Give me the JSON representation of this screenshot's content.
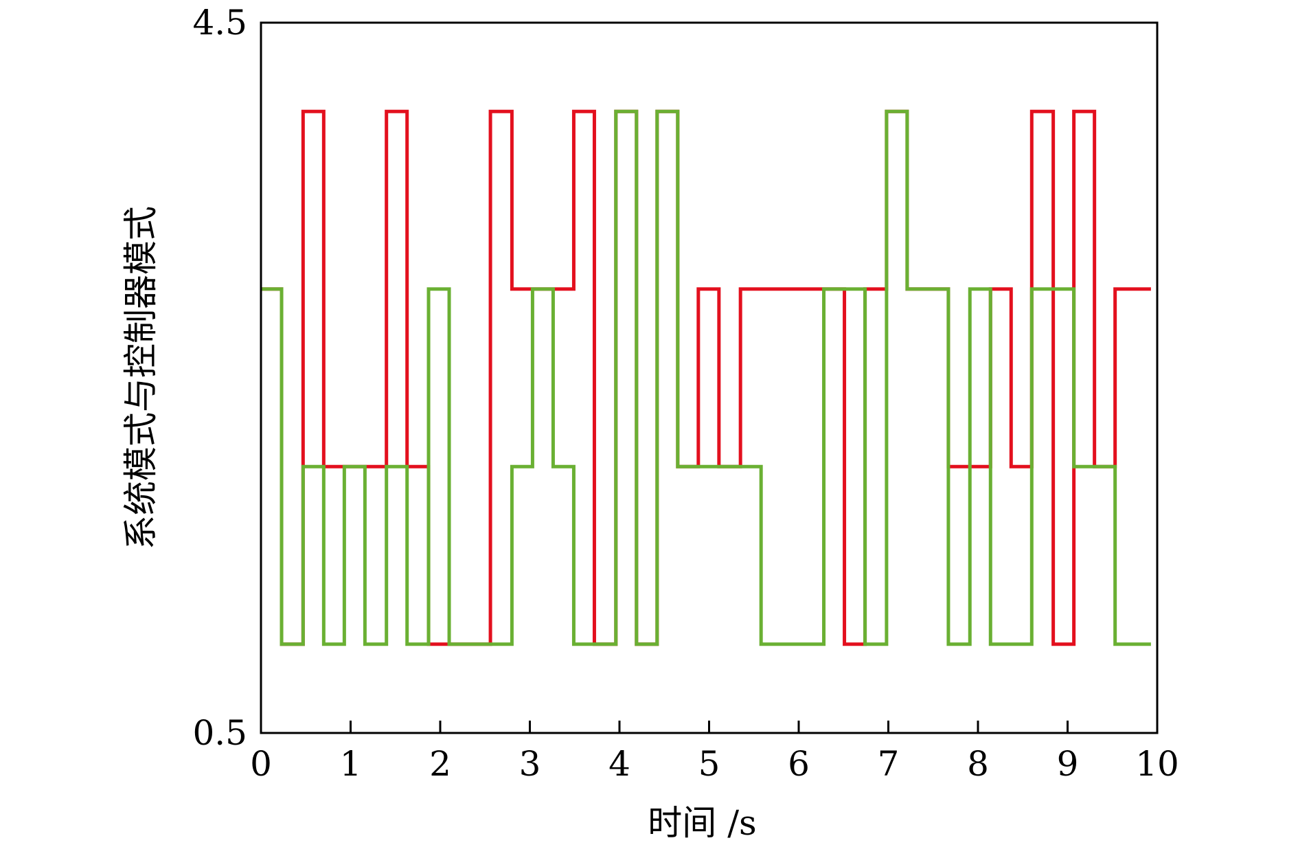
{
  "chart_data": {
    "type": "line",
    "step": "post",
    "xlabel": "时间 /s",
    "ylabel": "系统模式与控制器模式",
    "xlim": [
      0,
      10
    ],
    "ylim": [
      0.5,
      4.5
    ],
    "xticks": [
      "0",
      "1",
      "2",
      "3",
      "4",
      "5",
      "6",
      "7",
      "8",
      "9",
      "10"
    ],
    "yticks": [
      "0.5",
      "4.5"
    ],
    "grid": false,
    "series": [
      {
        "color": "#e3101e",
        "points": [
          [
            0.0,
            3
          ],
          [
            0.23,
            1
          ],
          [
            0.47,
            4
          ],
          [
            0.7,
            2
          ],
          [
            1.4,
            4
          ],
          [
            1.63,
            2
          ],
          [
            1.87,
            1
          ],
          [
            2.56,
            4
          ],
          [
            2.8,
            3
          ],
          [
            3.49,
            4
          ],
          [
            3.72,
            1
          ],
          [
            3.96,
            4
          ],
          [
            4.19,
            1
          ],
          [
            4.42,
            4
          ],
          [
            4.65,
            2
          ],
          [
            4.88,
            3
          ],
          [
            5.11,
            2
          ],
          [
            5.35,
            3
          ],
          [
            6.28,
            3
          ],
          [
            6.51,
            1
          ],
          [
            6.74,
            3
          ],
          [
            6.98,
            4
          ],
          [
            7.21,
            3
          ],
          [
            7.67,
            2
          ],
          [
            8.14,
            3
          ],
          [
            8.37,
            2
          ],
          [
            8.6,
            4
          ],
          [
            8.84,
            1
          ],
          [
            9.07,
            4
          ],
          [
            9.3,
            2
          ],
          [
            9.53,
            3
          ],
          [
            9.93,
            3
          ]
        ]
      },
      {
        "color": "#6ab033",
        "points": [
          [
            0.0,
            3
          ],
          [
            0.23,
            1
          ],
          [
            0.47,
            2
          ],
          [
            0.7,
            1
          ],
          [
            0.93,
            2
          ],
          [
            1.16,
            1
          ],
          [
            1.4,
            2
          ],
          [
            1.63,
            1
          ],
          [
            1.87,
            3
          ],
          [
            2.1,
            1
          ],
          [
            2.56,
            1
          ],
          [
            2.8,
            2
          ],
          [
            3.03,
            3
          ],
          [
            3.26,
            2
          ],
          [
            3.49,
            1
          ],
          [
            3.72,
            1
          ],
          [
            3.96,
            4
          ],
          [
            4.19,
            1
          ],
          [
            4.42,
            4
          ],
          [
            4.65,
            2
          ],
          [
            5.58,
            1
          ],
          [
            6.28,
            3
          ],
          [
            6.74,
            1
          ],
          [
            6.98,
            4
          ],
          [
            7.21,
            3
          ],
          [
            7.67,
            1
          ],
          [
            7.91,
            3
          ],
          [
            8.14,
            1
          ],
          [
            8.6,
            3
          ],
          [
            9.07,
            2
          ],
          [
            9.53,
            1
          ],
          [
            9.93,
            1
          ]
        ]
      }
    ]
  }
}
